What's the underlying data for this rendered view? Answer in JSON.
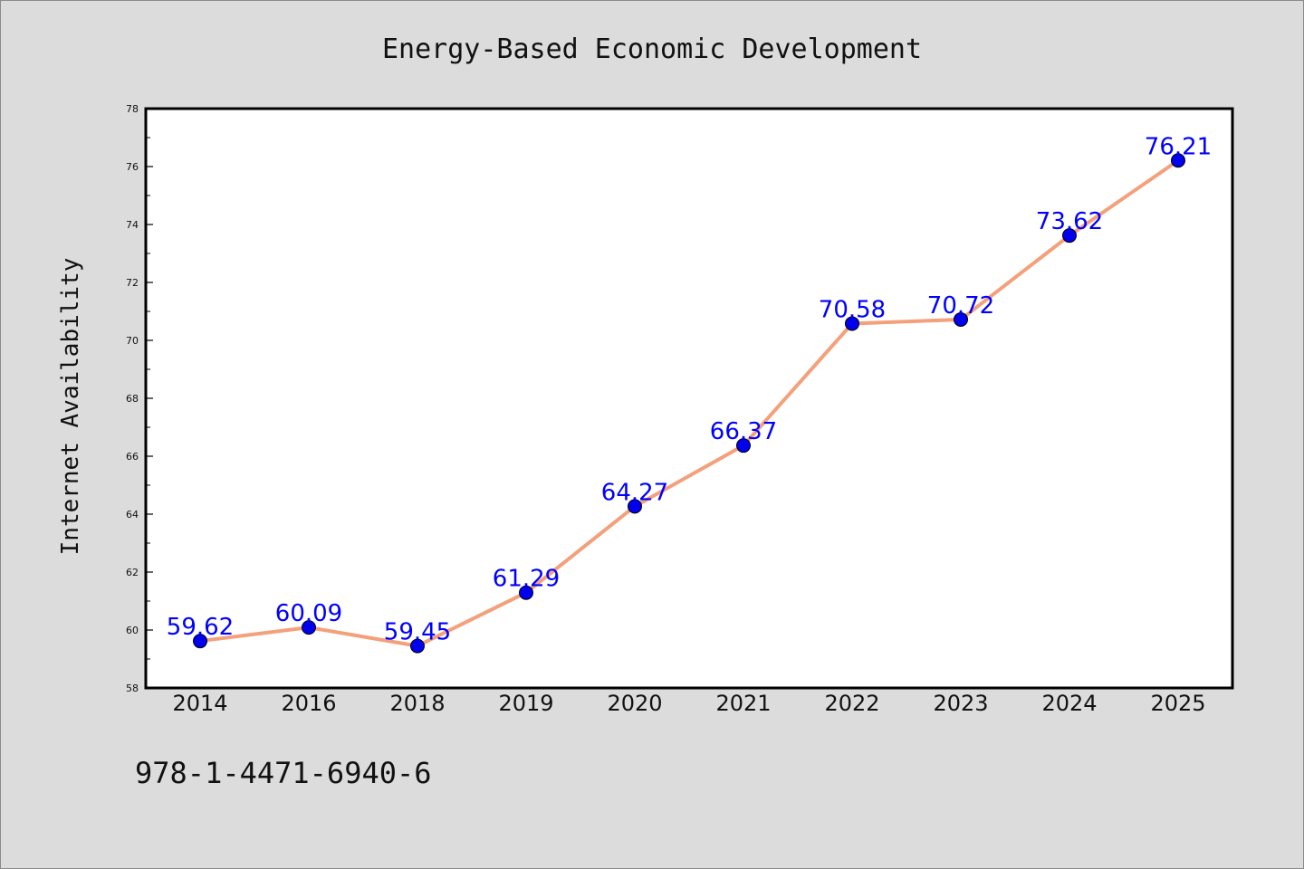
{
  "chart_data": {
    "type": "line",
    "title": "Energy-Based Economic Development",
    "xlabel": "",
    "ylabel": "Internet Availability",
    "categories": [
      "2014",
      "2016",
      "2018",
      "2019",
      "2020",
      "2021",
      "2022",
      "2023",
      "2024",
      "2025"
    ],
    "values": [
      59.62,
      60.09,
      59.45,
      61.29,
      64.27,
      66.37,
      70.58,
      70.72,
      73.62,
      76.21
    ],
    "data_labels": [
      "59.62",
      "60.09",
      "59.45",
      "61.29",
      "64.27",
      "66.37",
      "70.58",
      "70.72",
      "73.62",
      "76.21"
    ],
    "ylim": [
      58,
      78
    ],
    "yticks": [
      58,
      60,
      62,
      64,
      66,
      68,
      70,
      72,
      74,
      76,
      78
    ],
    "grid": false,
    "line_color": "#f4a07a",
    "marker_color": "#0000ee",
    "label_color": "#0000ff"
  },
  "footer": {
    "text": "978-1-4471-6940-6"
  }
}
